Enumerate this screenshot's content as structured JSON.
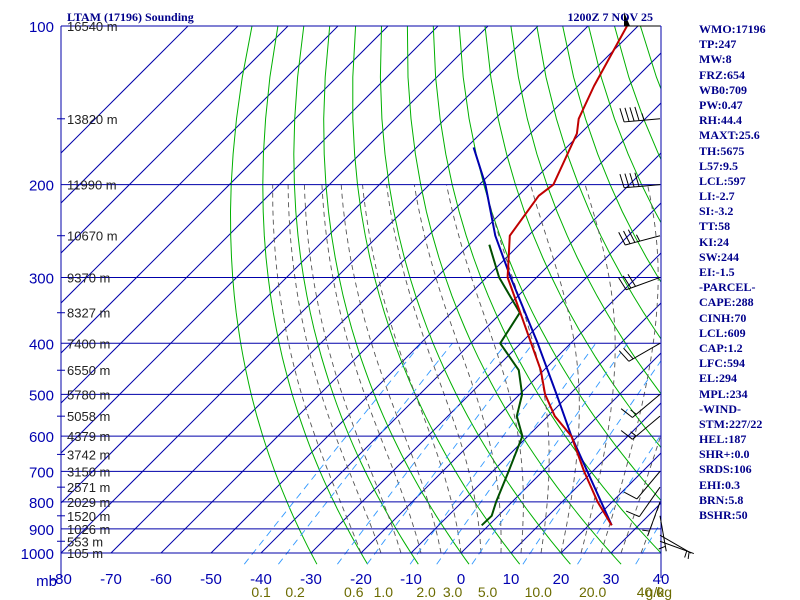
{
  "chart_data": {
    "type": "line",
    "title": "LTAM (17196) Sounding",
    "time_label": "1200Z  7 NOV 25",
    "pressure_unit_label": "mb",
    "mixing_ratio_unit_label": "g/kg",
    "pressure_levels": [
      100,
      200,
      300,
      400,
      500,
      600,
      700,
      800,
      900,
      1000
    ],
    "temperature_ticks": [
      -80,
      -70,
      -60,
      -50,
      -40,
      -30,
      -20,
      -10,
      0,
      10,
      20,
      30,
      40
    ],
    "temperature_tick_labels": [
      "-80",
      "-70",
      "-60",
      "-50",
      "-40",
      "-30",
      "-20",
      "-10",
      "0",
      "10",
      "20",
      "30",
      "40"
    ],
    "mixing_ratio_labels": [
      {
        "label": "0.1",
        "value": 0.1
      },
      {
        "label": "0.2",
        "value": 0.2
      },
      {
        "label": "0.6",
        "value": 0.6
      },
      {
        "label": "1.0",
        "value": 1.0
      },
      {
        "label": "2.0",
        "value": 2.0
      },
      {
        "label": "3.0",
        "value": 3.0
      },
      {
        "label": "5.0",
        "value": 5.0
      },
      {
        "label": "10.0",
        "value": 10.0
      },
      {
        "label": "20.0",
        "value": 20.0
      },
      {
        "label": "40.0",
        "value": 40.0
      }
    ],
    "height_labels": [
      {
        "p": 100,
        "text": "16540 m"
      },
      {
        "p": 150,
        "text": "13820 m"
      },
      {
        "p": 200,
        "text": "11990 m"
      },
      {
        "p": 250,
        "text": "10670 m"
      },
      {
        "p": 300,
        "text": "9370 m"
      },
      {
        "p": 350,
        "text": "8327 m"
      },
      {
        "p": 400,
        "text": "7400 m"
      },
      {
        "p": 450,
        "text": "6550 m"
      },
      {
        "p": 500,
        "text": "5780 m"
      },
      {
        "p": 550,
        "text": "5058 m"
      },
      {
        "p": 600,
        "text": "4379 m"
      },
      {
        "p": 650,
        "text": "3742 m"
      },
      {
        "p": 700,
        "text": "3150 m"
      },
      {
        "p": 750,
        "text": "2571 m"
      },
      {
        "p": 800,
        "text": "2029 m"
      },
      {
        "p": 850,
        "text": "1520 m"
      },
      {
        "p": 900,
        "text": "1026 m"
      },
      {
        "p": 950,
        "text": "553 m"
      },
      {
        "p": 1000,
        "text": "105 m"
      }
    ],
    "temperature_profile": {
      "color": "#c00000",
      "points": [
        [
          886,
          24.6
        ],
        [
          800,
          17.1
        ],
        [
          700,
          8.3
        ],
        [
          600,
          -1.3
        ],
        [
          550,
          -8.6
        ],
        [
          500,
          -14.9
        ],
        [
          450,
          -20.6
        ],
        [
          400,
          -27.9
        ],
        [
          350,
          -36.2
        ],
        [
          300,
          -45.8
        ],
        [
          250,
          -53.7
        ],
        [
          210,
          -55.9
        ],
        [
          200,
          -55.2
        ],
        [
          180,
          -57.8
        ],
        [
          160,
          -60.7
        ],
        [
          150,
          -63.3
        ],
        [
          130,
          -66.8
        ],
        [
          100,
          -72.2
        ]
      ]
    },
    "dewpoint_profile": {
      "color": "#005000",
      "points": [
        [
          886,
          -1.4
        ],
        [
          850,
          -1.3
        ],
        [
          800,
          -3.2
        ],
        [
          700,
          -6.8
        ],
        [
          600,
          -11.1
        ],
        [
          550,
          -16.2
        ],
        [
          500,
          -19.5
        ],
        [
          450,
          -25.0
        ],
        [
          400,
          -34.1
        ],
        [
          350,
          -36.3
        ],
        [
          300,
          -47.5
        ],
        [
          260,
          -56.0
        ]
      ]
    },
    "parcel_profile": {
      "color": "#0000b0",
      "points": [
        [
          886,
          24.6
        ],
        [
          600,
          -1.3
        ],
        [
          500,
          -12.6
        ],
        [
          400,
          -26.6
        ],
        [
          300,
          -45.2
        ],
        [
          250,
          -56.6
        ],
        [
          200,
          -68.8
        ],
        [
          170,
          -78.6
        ]
      ]
    },
    "wind_barbs": [
      {
        "p": 100,
        "dir_deg": 270,
        "speed_kt": 50
      },
      {
        "p": 150,
        "dir_deg": 265,
        "speed_kt": 45
      },
      {
        "p": 200,
        "dir_deg": 265,
        "speed_kt": 40
      },
      {
        "p": 250,
        "dir_deg": 255,
        "speed_kt": 35
      },
      {
        "p": 300,
        "dir_deg": 250,
        "speed_kt": 30
      },
      {
        "p": 400,
        "dir_deg": 240,
        "speed_kt": 20
      },
      {
        "p": 500,
        "dir_deg": 230,
        "speed_kt": 15
      },
      {
        "p": 550,
        "dir_deg": 230,
        "speed_kt": 15
      },
      {
        "p": 700,
        "dir_deg": 220,
        "speed_kt": 10
      },
      {
        "p": 750,
        "dir_deg": 215,
        "speed_kt": 10
      },
      {
        "p": 800,
        "dir_deg": 200,
        "speed_kt": 5
      },
      {
        "p": 850,
        "dir_deg": 170,
        "speed_kt": 5
      },
      {
        "p": 925,
        "dir_deg": 120,
        "speed_kt": 5
      },
      {
        "p": 950,
        "dir_deg": 110,
        "speed_kt": 5
      }
    ],
    "grid": true
  },
  "indices": [
    "WMO:17196",
    "TP:247",
    "MW:8",
    "FRZ:654",
    "WB0:709",
    "PW:0.47",
    "RH:44.4",
    "MAXT:25.6",
    "TH:5675",
    "L57:9.5",
    "LCL:597",
    "LI:-2.7",
    "SI:-3.2",
    "TT:58",
    "KI:24",
    "SW:244",
    "EI:-1.5",
    "-PARCEL-",
    "CAPE:288",
    "CINH:70",
    "LCL:609",
    "CAP:1.2",
    "LFC:594",
    "EL:294",
    "MPL:234",
    "-WIND-",
    "STM:227/22",
    "HEL:187",
    "SHR+:0.0",
    "SRDS:106",
    "EHI:0.3",
    "BRN:5.8",
    "BSHR:50"
  ],
  "colors": {
    "grid": "#0000aa",
    "dry_adiabat": "#00b000",
    "moist_adiabat": "#555555",
    "mixing_ratio": "#3399ff",
    "frame": "#000000"
  }
}
